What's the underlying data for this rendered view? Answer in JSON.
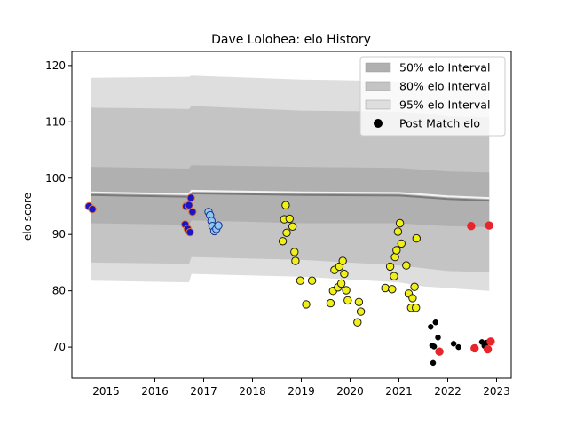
{
  "chart_data": {
    "type": "scatter",
    "title": "Dave Lolohea: elo History",
    "xlabel": "",
    "ylabel": "elo score",
    "xlim": [
      2014.3,
      2023.3
    ],
    "ylim": [
      64.5,
      122.5
    ],
    "x_ticks": [
      2015,
      2016,
      2017,
      2018,
      2019,
      2020,
      2021,
      2022,
      2023
    ],
    "y_ticks": [
      70,
      80,
      90,
      100,
      110,
      120
    ],
    "grid": false,
    "legend_position": "top-right",
    "legend": [
      {
        "label": "50% elo Interval",
        "color": "#b0b0b0",
        "kind": "patch"
      },
      {
        "label": "80% elo Interval",
        "color": "#c4c4c4",
        "kind": "patch"
      },
      {
        "label": "95% elo Interval",
        "color": "#dedede",
        "kind": "patch"
      },
      {
        "label": "Post Match elo",
        "color": "#000000",
        "kind": "marker"
      }
    ],
    "intervals": {
      "x": [
        2014.7,
        2016.7,
        2016.75,
        2019.0,
        2021.0,
        2021.5,
        2022.0,
        2022.85
      ],
      "mean": [
        97.0,
        96.7,
        97.3,
        97.0,
        96.9,
        96.6,
        96.3,
        96.0
      ],
      "band50": [
        [
          92.0,
          102.0
        ],
        [
          91.7,
          101.7
        ],
        [
          92.5,
          102.3
        ],
        [
          92.0,
          102.0
        ],
        [
          92.0,
          101.8
        ],
        [
          91.7,
          101.5
        ],
        [
          91.5,
          101.2
        ],
        [
          91.3,
          101.0
        ]
      ],
      "band80": [
        [
          85.0,
          112.5
        ],
        [
          84.8,
          112.3
        ],
        [
          86.0,
          112.8
        ],
        [
          85.5,
          112.0
        ],
        [
          84.5,
          111.8
        ],
        [
          84.0,
          111.5
        ],
        [
          83.5,
          111.0
        ],
        [
          83.3,
          110.8
        ]
      ],
      "band95": [
        [
          81.8,
          117.8
        ],
        [
          81.5,
          118.0
        ],
        [
          83.0,
          118.2
        ],
        [
          82.5,
          117.5
        ],
        [
          81.5,
          117.2
        ],
        [
          80.8,
          116.6
        ],
        [
          80.5,
          116.3
        ],
        [
          80.0,
          115.8
        ]
      ],
      "colors": {
        "band95": "#dedede",
        "band80": "#c4c4c4",
        "band50": "#b0b0b0",
        "mean": "#7a7a7a"
      }
    },
    "series": [
      {
        "marker_color": "#1c14c8",
        "edge_color": "#e07a2e",
        "points": [
          [
            2014.65,
            95.0
          ],
          [
            2014.72,
            94.5
          ],
          [
            2016.62,
            91.8
          ],
          [
            2016.64,
            95.0
          ],
          [
            2016.67,
            91.0
          ],
          [
            2016.7,
            95.2
          ],
          [
            2016.72,
            90.4
          ],
          [
            2016.74,
            96.5
          ],
          [
            2016.77,
            94.0
          ]
        ]
      },
      {
        "marker_color": "#8ec8f0",
        "edge_color": "#1c2f8c",
        "points": [
          [
            2017.1,
            94.0
          ],
          [
            2017.13,
            93.4
          ],
          [
            2017.16,
            92.4
          ],
          [
            2017.18,
            91.5
          ],
          [
            2017.22,
            90.6
          ],
          [
            2017.26,
            91.0
          ],
          [
            2017.3,
            91.6
          ]
        ]
      },
      {
        "marker_color": "#f0f018",
        "edge_color": "#1a1a1a",
        "points": [
          [
            2018.62,
            88.8
          ],
          [
            2018.65,
            92.7
          ],
          [
            2018.68,
            95.2
          ],
          [
            2018.7,
            90.3
          ],
          [
            2018.76,
            92.8
          ],
          [
            2018.82,
            91.4
          ],
          [
            2018.86,
            86.9
          ],
          [
            2018.88,
            85.3
          ],
          [
            2018.98,
            81.8
          ],
          [
            2019.1,
            77.6
          ],
          [
            2019.22,
            81.8
          ],
          [
            2019.6,
            77.8
          ],
          [
            2019.65,
            80.0
          ],
          [
            2019.68,
            83.7
          ],
          [
            2019.75,
            80.6
          ],
          [
            2019.78,
            84.3
          ],
          [
            2019.82,
            81.3
          ],
          [
            2019.85,
            85.3
          ],
          [
            2019.88,
            83.0
          ],
          [
            2019.92,
            80.1
          ],
          [
            2019.95,
            78.3
          ],
          [
            2020.15,
            74.4
          ],
          [
            2020.18,
            78.0
          ],
          [
            2020.22,
            76.3
          ],
          [
            2020.72,
            80.5
          ],
          [
            2020.82,
            84.3
          ],
          [
            2020.86,
            80.3
          ],
          [
            2020.9,
            82.6
          ],
          [
            2020.92,
            86.0
          ],
          [
            2020.95,
            87.2
          ],
          [
            2020.98,
            90.5
          ],
          [
            2021.02,
            92.0
          ],
          [
            2021.05,
            88.4
          ],
          [
            2021.15,
            84.5
          ],
          [
            2021.2,
            79.5
          ],
          [
            2021.25,
            77.0
          ],
          [
            2021.28,
            78.7
          ],
          [
            2021.32,
            80.7
          ],
          [
            2021.35,
            77.0
          ],
          [
            2021.36,
            89.3
          ]
        ]
      },
      {
        "marker_color": "#000000",
        "edge_color": "#000000",
        "small": true,
        "points": [
          [
            2021.65,
            73.6
          ],
          [
            2021.68,
            70.3
          ],
          [
            2021.7,
            67.2
          ],
          [
            2021.72,
            70.1
          ],
          [
            2021.75,
            74.4
          ],
          [
            2021.8,
            71.7
          ],
          [
            2022.12,
            70.6
          ],
          [
            2022.22,
            70.0
          ],
          [
            2022.7,
            70.9
          ],
          [
            2022.75,
            70.2
          ],
          [
            2022.8,
            70.8
          ]
        ]
      },
      {
        "marker_color": "#e8252a",
        "edge_color": "#e8252a",
        "points": [
          [
            2021.83,
            69.2
          ],
          [
            2022.48,
            91.5
          ],
          [
            2022.55,
            69.8
          ],
          [
            2022.82,
            69.6
          ],
          [
            2022.85,
            91.6
          ],
          [
            2022.88,
            71.0
          ]
        ]
      }
    ]
  }
}
